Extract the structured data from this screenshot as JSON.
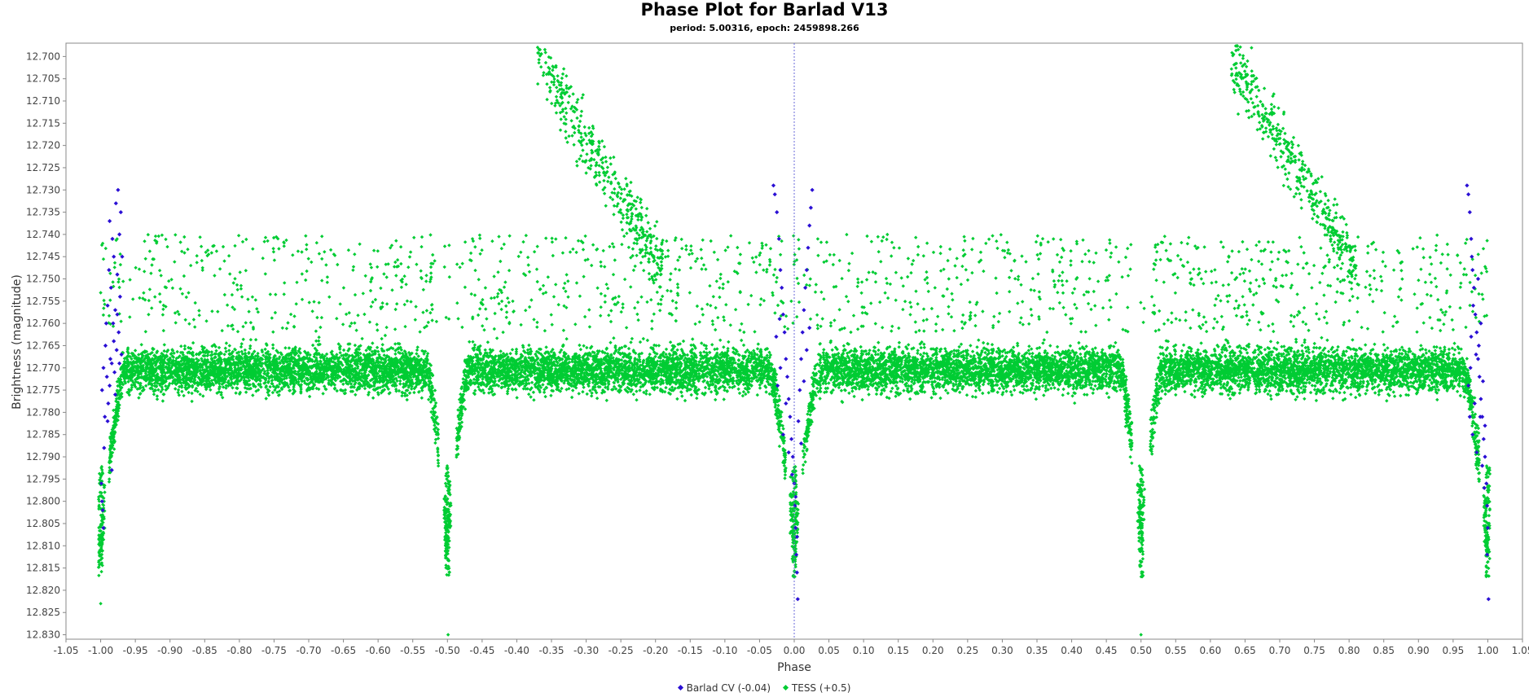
{
  "chart_data": {
    "type": "scatter",
    "title": "Phase Plot for Barlad V13",
    "subtitle": "period: 5.00316, epoch: 2459898.266",
    "xlabel": "Phase",
    "ylabel": "Brightness (magnitude)",
    "xlim": [
      -1.05,
      1.05
    ],
    "ylim": [
      12.697,
      12.831
    ],
    "y_inverted": true,
    "x_ticks": [
      "-1.05",
      "-1.00",
      "-0.95",
      "-0.90",
      "-0.85",
      "-0.80",
      "-0.75",
      "-0.70",
      "-0.65",
      "-0.60",
      "-0.55",
      "-0.50",
      "-0.45",
      "-0.40",
      "-0.35",
      "-0.30",
      "-0.25",
      "-0.20",
      "-0.15",
      "-0.10",
      "-0.05",
      "0.00",
      "0.05",
      "0.10",
      "0.15",
      "0.20",
      "0.25",
      "0.30",
      "0.35",
      "0.40",
      "0.45",
      "0.50",
      "0.55",
      "0.60",
      "0.65",
      "0.70",
      "0.75",
      "0.80",
      "0.85",
      "0.90",
      "0.95",
      "1.00",
      "1.05"
    ],
    "y_ticks": [
      "12.700",
      "12.705",
      "12.710",
      "12.715",
      "12.720",
      "12.725",
      "12.730",
      "12.735",
      "12.740",
      "12.745",
      "12.750",
      "12.755",
      "12.760",
      "12.765",
      "12.770",
      "12.775",
      "12.780",
      "12.785",
      "12.790",
      "12.795",
      "12.800",
      "12.805",
      "12.810",
      "12.815",
      "12.820",
      "12.825",
      "12.830"
    ],
    "zero_line_x": 0.0,
    "grid": false,
    "legend_position": "bottom-center",
    "series": [
      {
        "name": "Barlad CV (-0.04)",
        "color": "#2a0fd4",
        "points": [
          [
            -0.998,
            12.775
          ],
          [
            -0.996,
            12.77
          ],
          [
            -0.994,
            12.781
          ],
          [
            -0.993,
            12.765
          ],
          [
            -0.992,
            12.76
          ],
          [
            -0.991,
            12.772
          ],
          [
            -0.99,
            12.756
          ],
          [
            -0.989,
            12.778
          ],
          [
            -0.988,
            12.748
          ],
          [
            -0.987,
            12.737
          ],
          [
            -0.986,
            12.768
          ],
          [
            -0.985,
            12.752
          ],
          [
            -0.984,
            12.793
          ],
          [
            -0.983,
            12.741
          ],
          [
            -0.982,
            12.76
          ],
          [
            -0.981,
            12.745
          ],
          [
            -0.98,
            12.771
          ],
          [
            -0.979,
            12.757
          ],
          [
            -0.978,
            12.733
          ],
          [
            -0.977,
            12.766
          ],
          [
            -0.976,
            12.749
          ],
          [
            -0.975,
            12.73
          ],
          [
            -0.974,
            12.762
          ],
          [
            -0.973,
            12.74
          ],
          [
            -0.972,
            12.754
          ],
          [
            -0.971,
            12.735
          ],
          [
            -0.97,
            12.767
          ],
          [
            -0.969,
            12.745
          ],
          [
            -0.998,
            12.8
          ],
          [
            -0.997,
            12.802
          ],
          [
            -0.996,
            12.806
          ],
          [
            -0.995,
            12.788
          ],
          [
            -0.999,
            12.796
          ],
          [
            -0.99,
            12.782
          ],
          [
            -0.987,
            12.774
          ],
          [
            -0.984,
            12.769
          ],
          [
            -0.981,
            12.764
          ],
          [
            -0.979,
            12.776
          ],
          [
            -0.976,
            12.758
          ],
          [
            -0.973,
            12.769
          ],
          [
            -0.03,
            12.729
          ],
          [
            -0.028,
            12.731
          ],
          [
            -0.025,
            12.735
          ],
          [
            -0.022,
            12.741
          ],
          [
            -0.02,
            12.748
          ],
          [
            -0.018,
            12.752
          ],
          [
            -0.016,
            12.758
          ],
          [
            -0.014,
            12.762
          ],
          [
            -0.012,
            12.768
          ],
          [
            -0.01,
            12.772
          ],
          [
            -0.008,
            12.777
          ],
          [
            -0.006,
            12.781
          ],
          [
            -0.004,
            12.786
          ],
          [
            -0.002,
            12.79
          ],
          [
            0.0,
            12.796
          ],
          [
            0.001,
            12.801
          ],
          [
            0.002,
            12.806
          ],
          [
            0.003,
            12.812
          ],
          [
            0.004,
            12.816
          ],
          [
            0.005,
            12.822
          ],
          [
            0.006,
            12.782
          ],
          [
            0.008,
            12.775
          ],
          [
            0.01,
            12.768
          ],
          [
            0.012,
            12.762
          ],
          [
            0.014,
            12.757
          ],
          [
            0.016,
            12.752
          ],
          [
            0.018,
            12.748
          ],
          [
            0.02,
            12.743
          ],
          [
            0.022,
            12.738
          ],
          [
            0.024,
            12.734
          ],
          [
            0.026,
            12.73
          ],
          [
            -0.024,
            12.774
          ],
          [
            -0.02,
            12.77
          ],
          [
            -0.016,
            12.785
          ],
          [
            -0.012,
            12.778
          ],
          [
            -0.008,
            12.789
          ],
          [
            0.01,
            12.787
          ],
          [
            0.014,
            12.773
          ],
          [
            0.018,
            12.766
          ],
          [
            0.022,
            12.761
          ],
          [
            -0.026,
            12.763
          ],
          [
            -0.021,
            12.759
          ],
          [
            0.002,
            12.799
          ],
          [
            -0.003,
            12.794
          ],
          [
            0.004,
            12.808
          ],
          [
            0.97,
            12.729
          ],
          [
            0.972,
            12.731
          ],
          [
            0.974,
            12.735
          ],
          [
            0.976,
            12.741
          ],
          [
            0.978,
            12.748
          ],
          [
            0.98,
            12.752
          ],
          [
            0.982,
            12.758
          ],
          [
            0.984,
            12.762
          ],
          [
            0.986,
            12.768
          ],
          [
            0.988,
            12.772
          ],
          [
            0.99,
            12.777
          ],
          [
            0.992,
            12.781
          ],
          [
            0.994,
            12.786
          ],
          [
            0.996,
            12.79
          ],
          [
            0.998,
            12.796
          ],
          [
            0.999,
            12.801
          ],
          [
            1.0,
            12.806
          ],
          [
            1.001,
            12.822
          ],
          [
            0.999,
            12.812
          ],
          [
            0.972,
            12.774
          ],
          [
            0.975,
            12.77
          ],
          [
            0.978,
            12.785
          ],
          [
            0.981,
            12.778
          ],
          [
            0.984,
            12.789
          ],
          [
            0.987,
            12.765
          ],
          [
            0.99,
            12.76
          ],
          [
            0.993,
            12.773
          ],
          [
            0.996,
            12.783
          ],
          [
            0.976,
            12.763
          ],
          [
            0.979,
            12.756
          ],
          [
            0.983,
            12.767
          ],
          [
            0.986,
            12.75
          ],
          [
            0.989,
            12.781
          ],
          [
            0.992,
            12.792
          ],
          [
            0.995,
            12.797
          ],
          [
            0.974,
            12.781
          ],
          [
            0.977,
            12.745
          ]
        ]
      },
      {
        "name": "TESS (+0.5)",
        "color": "#00cc33",
        "points": []
      }
    ]
  }
}
